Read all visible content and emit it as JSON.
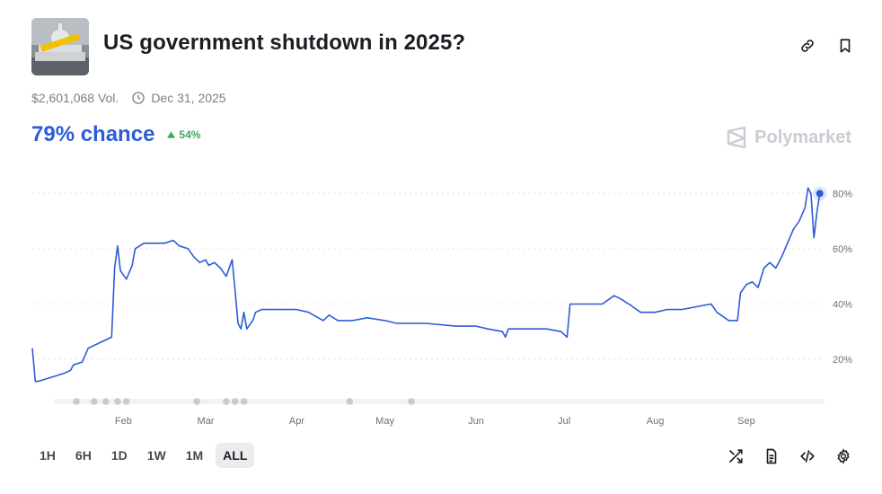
{
  "market": {
    "title": "US government shutdown in 2025?",
    "volume": "$2,601,068 Vol.",
    "end_date": "Dec 31, 2025",
    "chance_text": "79% chance",
    "delta_text": "54%",
    "brand": "Polymarket",
    "accent_color": "#2e5cd6",
    "positive_color": "#3aa860"
  },
  "range_tabs": [
    {
      "label": "1H",
      "active": false
    },
    {
      "label": "6H",
      "active": false
    },
    {
      "label": "1D",
      "active": false
    },
    {
      "label": "1W",
      "active": false
    },
    {
      "label": "1M",
      "active": false
    },
    {
      "label": "ALL",
      "active": true
    }
  ],
  "icons": {
    "top": [
      "link-icon",
      "bookmark-icon"
    ],
    "bottom": [
      "shuffle-icon",
      "document-icon",
      "code-embed-icon",
      "settings-gear-icon"
    ]
  },
  "chart_data": {
    "type": "line",
    "title": "",
    "xlabel": "",
    "ylabel": "",
    "y_unit": "%",
    "ylim": [
      7,
      85
    ],
    "yticks": [
      20,
      40,
      60,
      80
    ],
    "ytick_labels": [
      "20%",
      "40%",
      "60%",
      "80%"
    ],
    "grid": "dotted horizontal",
    "x_domain": [
      "2025-01-01",
      "2025-09-27"
    ],
    "xticks": [
      {
        "date": "2025-02-01",
        "label": "Feb"
      },
      {
        "date": "2025-03-01",
        "label": "Mar"
      },
      {
        "date": "2025-04-01",
        "label": "Apr"
      },
      {
        "date": "2025-05-01",
        "label": "May"
      },
      {
        "date": "2025-06-01",
        "label": "Jun"
      },
      {
        "date": "2025-07-01",
        "label": "Jul"
      },
      {
        "date": "2025-08-01",
        "label": "Aug"
      },
      {
        "date": "2025-09-01",
        "label": "Sep"
      }
    ],
    "event_markers": [
      "2025-01-16",
      "2025-01-22",
      "2025-01-26",
      "2025-01-30",
      "2025-02-02",
      "2025-02-26",
      "2025-03-08",
      "2025-03-11",
      "2025-03-14",
      "2025-04-19",
      "2025-05-10"
    ],
    "series": [
      {
        "color": "#2e5cd6",
        "points": [
          [
            "2025-01-01",
            24
          ],
          [
            "2025-01-02",
            12
          ],
          [
            "2025-01-03",
            12
          ],
          [
            "2025-01-06",
            13
          ],
          [
            "2025-01-09",
            14
          ],
          [
            "2025-01-12",
            15
          ],
          [
            "2025-01-14",
            16
          ],
          [
            "2025-01-15",
            18
          ],
          [
            "2025-01-18",
            19
          ],
          [
            "2025-01-20",
            24
          ],
          [
            "2025-01-22",
            25
          ],
          [
            "2025-01-24",
            26
          ],
          [
            "2025-01-26",
            27
          ],
          [
            "2025-01-28",
            28
          ],
          [
            "2025-01-29",
            53
          ],
          [
            "2025-01-30",
            61
          ],
          [
            "2025-01-31",
            52
          ],
          [
            "2025-02-02",
            49
          ],
          [
            "2025-02-04",
            54
          ],
          [
            "2025-02-05",
            60
          ],
          [
            "2025-02-08",
            62
          ],
          [
            "2025-02-15",
            62
          ],
          [
            "2025-02-18",
            63
          ],
          [
            "2025-02-20",
            61
          ],
          [
            "2025-02-23",
            60
          ],
          [
            "2025-02-25",
            57
          ],
          [
            "2025-02-27",
            55
          ],
          [
            "2025-03-01",
            56
          ],
          [
            "2025-03-02",
            54
          ],
          [
            "2025-03-04",
            55
          ],
          [
            "2025-03-06",
            53
          ],
          [
            "2025-03-08",
            50
          ],
          [
            "2025-03-10",
            56
          ],
          [
            "2025-03-11",
            45
          ],
          [
            "2025-03-12",
            33
          ],
          [
            "2025-03-13",
            31
          ],
          [
            "2025-03-14",
            37
          ],
          [
            "2025-03-15",
            31
          ],
          [
            "2025-03-17",
            34
          ],
          [
            "2025-03-18",
            37
          ],
          [
            "2025-03-20",
            38
          ],
          [
            "2025-03-25",
            38
          ],
          [
            "2025-04-01",
            38
          ],
          [
            "2025-04-05",
            37
          ],
          [
            "2025-04-10",
            34
          ],
          [
            "2025-04-12",
            36
          ],
          [
            "2025-04-15",
            34
          ],
          [
            "2025-04-20",
            34
          ],
          [
            "2025-04-25",
            35
          ],
          [
            "2025-05-01",
            34
          ],
          [
            "2025-05-05",
            33
          ],
          [
            "2025-05-15",
            33
          ],
          [
            "2025-05-25",
            32
          ],
          [
            "2025-06-01",
            32
          ],
          [
            "2025-06-05",
            31
          ],
          [
            "2025-06-10",
            30
          ],
          [
            "2025-06-11",
            28
          ],
          [
            "2025-06-12",
            31
          ],
          [
            "2025-06-20",
            31
          ],
          [
            "2025-06-25",
            31
          ],
          [
            "2025-06-30",
            30
          ],
          [
            "2025-07-02",
            28
          ],
          [
            "2025-07-03",
            40
          ],
          [
            "2025-07-06",
            40
          ],
          [
            "2025-07-10",
            40
          ],
          [
            "2025-07-14",
            40
          ],
          [
            "2025-07-18",
            43
          ],
          [
            "2025-07-20",
            42
          ],
          [
            "2025-07-23",
            40
          ],
          [
            "2025-07-27",
            37
          ],
          [
            "2025-08-01",
            37
          ],
          [
            "2025-08-05",
            38
          ],
          [
            "2025-08-10",
            38
          ],
          [
            "2025-08-15",
            39
          ],
          [
            "2025-08-20",
            40
          ],
          [
            "2025-08-22",
            37
          ],
          [
            "2025-08-26",
            34
          ],
          [
            "2025-08-29",
            34
          ],
          [
            "2025-08-30",
            44
          ],
          [
            "2025-09-01",
            47
          ],
          [
            "2025-09-03",
            48
          ],
          [
            "2025-09-05",
            46
          ],
          [
            "2025-09-07",
            53
          ],
          [
            "2025-09-09",
            55
          ],
          [
            "2025-09-11",
            53
          ],
          [
            "2025-09-13",
            57
          ],
          [
            "2025-09-15",
            62
          ],
          [
            "2025-09-17",
            67
          ],
          [
            "2025-09-19",
            70
          ],
          [
            "2025-09-21",
            75
          ],
          [
            "2025-09-22",
            82
          ],
          [
            "2025-09-23",
            80
          ],
          [
            "2025-09-24",
            64
          ],
          [
            "2025-09-25",
            73
          ],
          [
            "2025-09-26",
            80
          ]
        ]
      }
    ]
  }
}
